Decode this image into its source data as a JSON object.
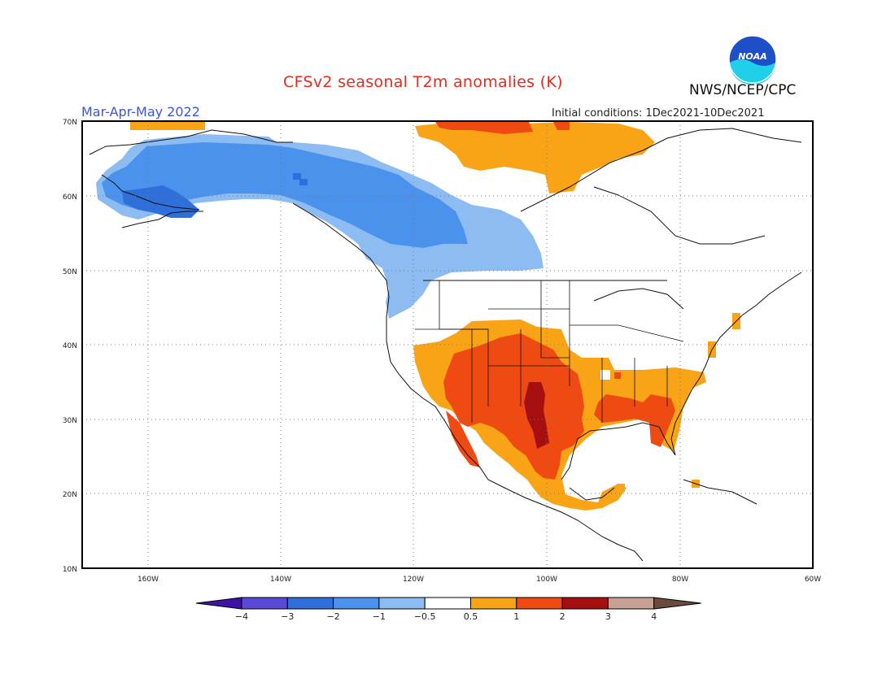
{
  "header": {
    "title": "CFSv2 seasonal T2m anomalies (K)",
    "season": "Mar-Apr-May 2022",
    "initial_conditions": "Initial conditions: 1Dec2021-10Dec2021",
    "agency": "NWS/NCEP/CPC",
    "logo_text": "NOAA"
  },
  "map": {
    "lat_labels": [
      "70N",
      "60N",
      "50N",
      "40N",
      "30N",
      "20N",
      "10N"
    ],
    "lon_labels": [
      "160W",
      "140W",
      "120W",
      "100W",
      "80W",
      "60W"
    ]
  },
  "colorbar": {
    "tick_labels": [
      "−4",
      "−3",
      "−2",
      "−1",
      "−0.5",
      "0.5",
      "1",
      "2",
      "3",
      "4"
    ],
    "colors": [
      "#3c12a8",
      "#5a48d6",
      "#2e6fd9",
      "#4b92ec",
      "#8cbcf2",
      "#ffffff",
      "#f9a317",
      "#f04a13",
      "#a50f0f",
      "#c8a194",
      "#6b4a40"
    ]
  }
}
